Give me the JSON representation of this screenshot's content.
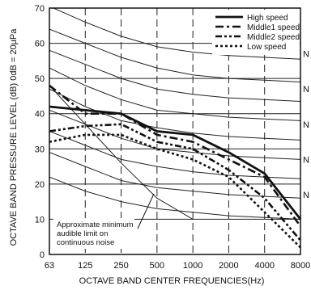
{
  "chart_data": {
    "type": "line",
    "xlabel": "OCTAVE BAND CENTER FREQUENCIES(Hz)",
    "ylabel": "OCTAVE  BAND  PRESSURE  LEVEL (dB) 0dB = 20μPa",
    "x_ticks": [
      "63",
      "125",
      "250",
      "500",
      "1000",
      "2000",
      "4000",
      "8000"
    ],
    "y_ticks": [
      0,
      10,
      20,
      30,
      40,
      50,
      60,
      70
    ],
    "ylim": [
      0,
      70
    ],
    "grid": true,
    "legend_position": "top-right",
    "series": [
      {
        "name": "High speed",
        "style": "solid",
        "values": [
          42,
          41,
          40,
          35,
          34,
          29,
          23,
          10
        ]
      },
      {
        "name": "Middle1 speed",
        "style": "dashdot",
        "values": [
          48,
          40,
          40,
          34,
          32,
          27,
          22,
          8
        ]
      },
      {
        "name": "Middle2 speed",
        "style": "dashdot2",
        "values": [
          35,
          36.5,
          37,
          32,
          30,
          24,
          16,
          4
        ]
      },
      {
        "name": "Low speed",
        "style": "dotted",
        "values": [
          32,
          34,
          34,
          30,
          27,
          22,
          12,
          2
        ]
      }
    ],
    "nc_curves": [
      [
        70.5,
        66,
        62,
        59,
        57.5,
        56.5,
        56,
        55.5
      ],
      [
        64,
        60,
        56,
        53,
        51,
        50,
        49.5,
        49
      ],
      [
        58,
        54,
        50,
        47,
        45.5,
        44.5,
        44,
        43.5
      ],
      [
        53,
        48,
        44,
        41,
        40,
        39,
        38.5,
        38
      ],
      [
        47,
        42,
        38,
        36,
        34.5,
        33.5,
        33,
        32.5
      ],
      [
        41,
        37,
        33,
        30,
        29,
        28,
        27.5,
        27
      ],
      [
        35,
        31,
        27,
        25,
        23.5,
        22.5,
        22,
        21.5
      ],
      [
        29,
        25,
        21,
        19,
        18,
        17,
        16.5,
        16
      ],
      [
        22,
        18,
        15,
        13,
        12,
        11,
        10.5,
        10
      ]
    ],
    "nc_label": "N",
    "nc_label_values": [
      57,
      47,
      37,
      27,
      17
    ],
    "threshold_curve": [
      48,
      37,
      26,
      16,
      10
    ],
    "annotation": "Approximate minimum\naudible limit on\ncontinuous noise"
  }
}
